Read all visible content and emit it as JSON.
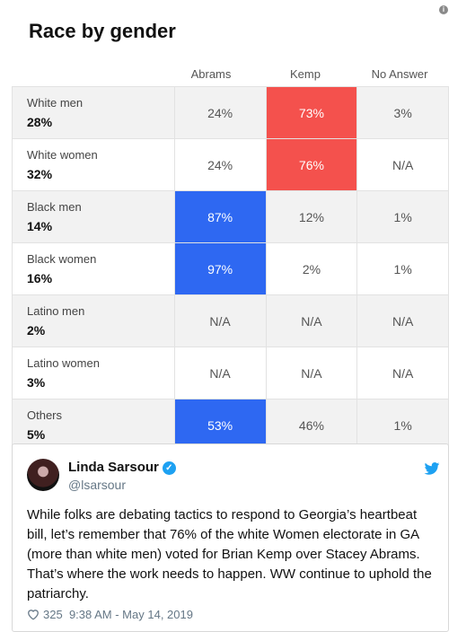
{
  "card": {
    "title": "Race by gender",
    "columns": [
      "Abrams",
      "Kemp",
      "No Answer"
    ],
    "rows": [
      {
        "group": "White men",
        "share": "28%",
        "values": [
          "24%",
          "73%",
          "3%"
        ],
        "highlight": [
          null,
          "red",
          null
        ]
      },
      {
        "group": "White women",
        "share": "32%",
        "values": [
          "24%",
          "76%",
          "N/A"
        ],
        "highlight": [
          null,
          "red",
          null
        ]
      },
      {
        "group": "Black men",
        "share": "14%",
        "values": [
          "87%",
          "12%",
          "1%"
        ],
        "highlight": [
          "blue",
          null,
          null
        ]
      },
      {
        "group": "Black women",
        "share": "16%",
        "values": [
          "97%",
          "2%",
          "1%"
        ],
        "highlight": [
          "blue",
          null,
          null
        ]
      },
      {
        "group": "Latino men",
        "share": "2%",
        "values": [
          "N/A",
          "N/A",
          "N/A"
        ],
        "highlight": [
          null,
          null,
          null
        ]
      },
      {
        "group": "Latino women",
        "share": "3%",
        "values": [
          "N/A",
          "N/A",
          "N/A"
        ],
        "highlight": [
          null,
          null,
          null
        ]
      },
      {
        "group": "Others",
        "share": "5%",
        "values": [
          "53%",
          "46%",
          "1%"
        ],
        "highlight": [
          "blue",
          null,
          null
        ]
      }
    ]
  },
  "tweet": {
    "name": "Linda Sarsour",
    "handle": "@lsarsour",
    "text": "While folks are debating tactics to respond to Georgia’s heartbeat bill, let’s remember that 76% of the white Women electorate in GA (more than white men) voted for Brian Kemp over Stacey Abrams. That’s where the work needs to happen. WW continue to uphold the patriarchy.",
    "likes": "325",
    "timestamp": "9:38 AM - May 14, 2019"
  },
  "colors": {
    "kemp_red": "#f4514d",
    "abrams_blue": "#2e68f2",
    "twitter_blue": "#1da1f2"
  },
  "icons": {
    "info": "info-icon",
    "verified": "verified-badge-icon",
    "bird": "twitter-bird-icon",
    "like": "heart-icon"
  }
}
